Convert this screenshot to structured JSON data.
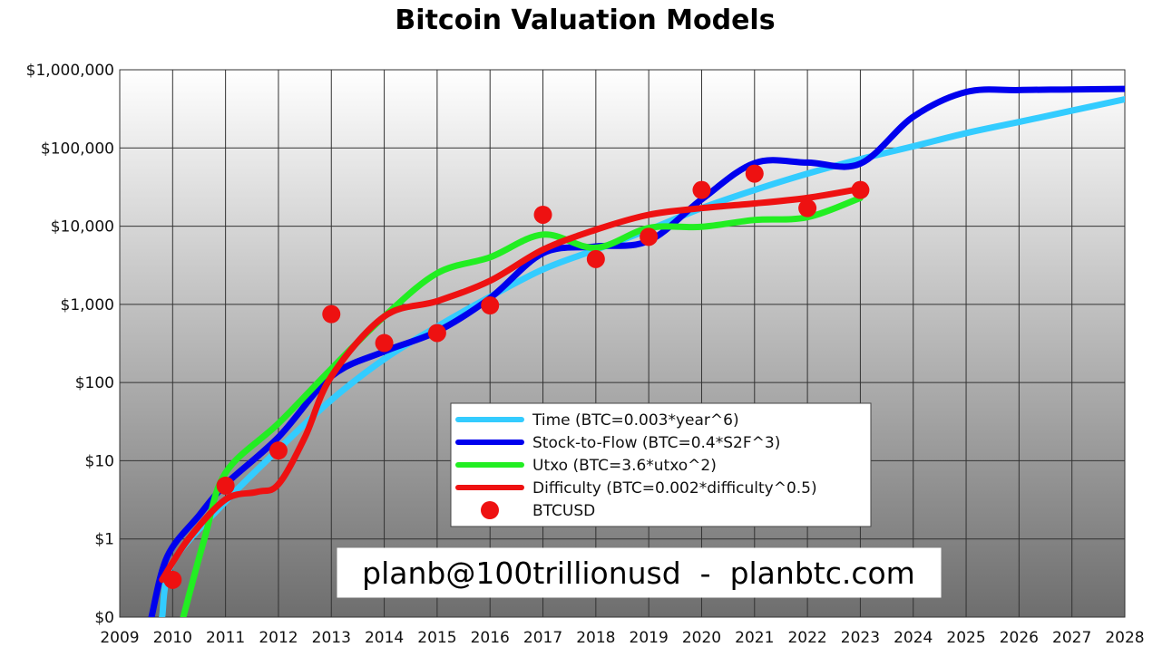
{
  "chart_data": {
    "type": "line",
    "title": "Bitcoin Valuation Models",
    "xlabel": "",
    "ylabel": "",
    "y_scale": "log",
    "xlim": [
      2009,
      2028
    ],
    "ylim": [
      0.1,
      1000000
    ],
    "grid": true,
    "legend_position": "bottom-center",
    "x_ticks": [
      "2009",
      "2010",
      "2011",
      "2012",
      "2013",
      "2014",
      "2015",
      "2016",
      "2017",
      "2018",
      "2019",
      "2020",
      "2021",
      "2022",
      "2023",
      "2024",
      "2025",
      "2026",
      "2027",
      "2028"
    ],
    "y_ticks": [
      {
        "value": 0.1,
        "label": "$0"
      },
      {
        "value": 1,
        "label": "$1"
      },
      {
        "value": 10,
        "label": "$10"
      },
      {
        "value": 100,
        "label": "$100"
      },
      {
        "value": 1000,
        "label": "$1,000"
      },
      {
        "value": 10000,
        "label": "$10,000"
      },
      {
        "value": 100000,
        "label": "$100,000"
      },
      {
        "value": 1000000,
        "label": "$1,000,000"
      }
    ],
    "series": [
      {
        "name": "Time (BTC=0.003*year^6)",
        "color": "#33ccff",
        "kind": "line",
        "points": [
          [
            2009.8,
            0.1
          ],
          [
            2010,
            0.5
          ],
          [
            2011,
            3
          ],
          [
            2012,
            14
          ],
          [
            2013,
            60
          ],
          [
            2014,
            200
          ],
          [
            2015,
            520
          ],
          [
            2016,
            1250
          ],
          [
            2017,
            2800
          ],
          [
            2018,
            5000
          ],
          [
            2019,
            9000
          ],
          [
            2020,
            17000
          ],
          [
            2021,
            29000
          ],
          [
            2022,
            47000
          ],
          [
            2023,
            72000
          ],
          [
            2024,
            105000
          ],
          [
            2025,
            155000
          ],
          [
            2026,
            215000
          ],
          [
            2027,
            300000
          ],
          [
            2028,
            420000
          ]
        ]
      },
      {
        "name": "Stock-to-Flow (BTC=0.4*S2F^3)",
        "color": "#0000ee",
        "kind": "line",
        "points": [
          [
            2009.6,
            0.1
          ],
          [
            2009.9,
            0.6
          ],
          [
            2010.5,
            2
          ],
          [
            2011,
            5
          ],
          [
            2012,
            20
          ],
          [
            2013,
            120
          ],
          [
            2014,
            250
          ],
          [
            2015,
            450
          ],
          [
            2016,
            1200
          ],
          [
            2017,
            4500
          ],
          [
            2018,
            5500
          ],
          [
            2019,
            6500
          ],
          [
            2020,
            22000
          ],
          [
            2021,
            64000
          ],
          [
            2022,
            65000
          ],
          [
            2023,
            63000
          ],
          [
            2024,
            250000
          ],
          [
            2025,
            520000
          ],
          [
            2026,
            550000
          ],
          [
            2027,
            560000
          ],
          [
            2028,
            570000
          ]
        ]
      },
      {
        "name": "Utxo (BTC=3.6*utxo^2)",
        "color": "#22ee22",
        "kind": "line",
        "points": [
          [
            2010.2,
            0.1
          ],
          [
            2010.6,
            1
          ],
          [
            2011,
            7
          ],
          [
            2012,
            30
          ],
          [
            2013,
            150
          ],
          [
            2014,
            700
          ],
          [
            2015,
            2500
          ],
          [
            2016,
            4000
          ],
          [
            2017,
            7800
          ],
          [
            2018,
            5300
          ],
          [
            2019,
            9500
          ],
          [
            2020,
            9800
          ],
          [
            2021,
            12000
          ],
          [
            2022,
            13000
          ],
          [
            2023,
            23000
          ]
        ]
      },
      {
        "name": "Difficulty (BTC=0.002*difficulty^0.5)",
        "color": "#ee1111",
        "kind": "line",
        "points": [
          [
            2009.8,
            0.3
          ],
          [
            2010.3,
            1
          ],
          [
            2011,
            3.2
          ],
          [
            2011.6,
            4
          ],
          [
            2012,
            5
          ],
          [
            2012.5,
            20
          ],
          [
            2013,
            120
          ],
          [
            2014,
            700
          ],
          [
            2015,
            1100
          ],
          [
            2016,
            2000
          ],
          [
            2017,
            5000
          ],
          [
            2018,
            9000
          ],
          [
            2019,
            14000
          ],
          [
            2020,
            17000
          ],
          [
            2021,
            19500
          ],
          [
            2022,
            23000
          ],
          [
            2023,
            30000
          ]
        ]
      },
      {
        "name": "BTCUSD",
        "color": "#ee1111",
        "kind": "scatter",
        "points": [
          [
            2010,
            0.3
          ],
          [
            2011,
            4.8
          ],
          [
            2012,
            13.5
          ],
          [
            2013,
            750
          ],
          [
            2014,
            320
          ],
          [
            2015,
            430
          ],
          [
            2016,
            970
          ],
          [
            2017,
            14000
          ],
          [
            2018,
            3800
          ],
          [
            2019,
            7300
          ],
          [
            2020,
            29000
          ],
          [
            2021,
            47000
          ],
          [
            2022,
            17000
          ],
          [
            2023,
            29000
          ]
        ]
      }
    ],
    "annotation": "planb@100trillionusd  -  planbtc.com"
  }
}
